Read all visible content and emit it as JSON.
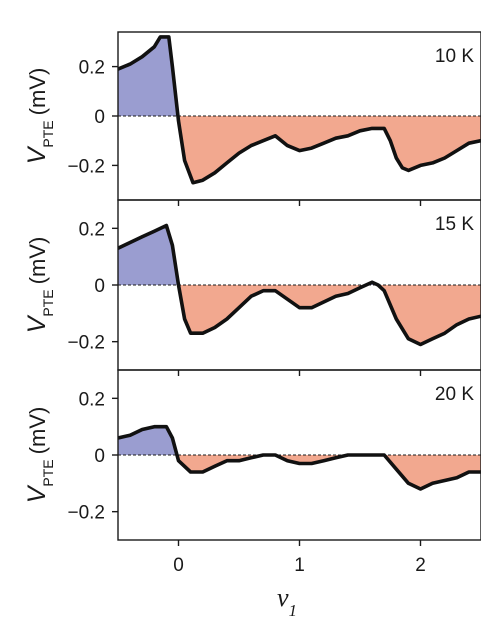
{
  "chart_data": {
    "type": "area",
    "xlabel": "ν",
    "xlabel_sub": "1",
    "xlim": [
      -0.5,
      2.5
    ],
    "x_ticks": [
      0,
      1,
      2
    ],
    "x_tick_labels": [
      "0",
      "1",
      "2"
    ],
    "colors": {
      "positive_fill": "#9a9dd0",
      "negative_fill": "#f2a88f",
      "line": "#111111"
    },
    "panels": [
      {
        "temperature_label": "10 K",
        "ylabel": "V",
        "ylabel_sub": "PTE",
        "ylabel_unit": "(mV)",
        "ylim": [
          -0.34,
          0.34
        ],
        "y_ticks": [
          0.2,
          0,
          -0.2
        ],
        "y_tick_labels": [
          "0.2",
          "0",
          "−0.2"
        ],
        "x": [
          -0.5,
          -0.4,
          -0.3,
          -0.2,
          -0.15,
          -0.08,
          -0.05,
          0.0,
          0.05,
          0.12,
          0.2,
          0.3,
          0.4,
          0.5,
          0.6,
          0.7,
          0.8,
          0.9,
          1.0,
          1.1,
          1.2,
          1.3,
          1.4,
          1.5,
          1.6,
          1.7,
          1.75,
          1.8,
          1.85,
          1.9,
          2.0,
          2.1,
          2.2,
          2.3,
          2.4,
          2.5
        ],
        "y": [
          0.19,
          0.21,
          0.24,
          0.28,
          0.32,
          0.32,
          0.2,
          -0.02,
          -0.18,
          -0.27,
          -0.26,
          -0.23,
          -0.19,
          -0.15,
          -0.12,
          -0.1,
          -0.08,
          -0.12,
          -0.14,
          -0.13,
          -0.11,
          -0.09,
          -0.08,
          -0.06,
          -0.05,
          -0.05,
          -0.1,
          -0.17,
          -0.21,
          -0.22,
          -0.2,
          -0.19,
          -0.17,
          -0.14,
          -0.11,
          -0.1
        ]
      },
      {
        "temperature_label": "15 K",
        "ylabel": "V",
        "ylabel_sub": "PTE",
        "ylabel_unit": "(mV)",
        "ylim": [
          -0.3,
          0.3
        ],
        "y_ticks": [
          0.2,
          0,
          -0.2
        ],
        "y_tick_labels": [
          "0.2",
          "0",
          "−0.2"
        ],
        "x": [
          -0.5,
          -0.4,
          -0.3,
          -0.2,
          -0.1,
          -0.05,
          0.0,
          0.05,
          0.1,
          0.2,
          0.3,
          0.4,
          0.5,
          0.6,
          0.7,
          0.8,
          0.9,
          1.0,
          1.1,
          1.2,
          1.3,
          1.4,
          1.5,
          1.6,
          1.65,
          1.7,
          1.8,
          1.9,
          2.0,
          2.1,
          2.2,
          2.3,
          2.4,
          2.5
        ],
        "y": [
          0.13,
          0.15,
          0.17,
          0.19,
          0.21,
          0.14,
          0.0,
          -0.12,
          -0.17,
          -0.17,
          -0.15,
          -0.12,
          -0.08,
          -0.04,
          -0.02,
          -0.02,
          -0.05,
          -0.08,
          -0.08,
          -0.06,
          -0.04,
          -0.03,
          -0.01,
          0.01,
          0.0,
          -0.02,
          -0.12,
          -0.19,
          -0.21,
          -0.19,
          -0.17,
          -0.14,
          -0.12,
          -0.11
        ]
      },
      {
        "temperature_label": "20 K",
        "ylabel": "V",
        "ylabel_sub": "PTE",
        "ylabel_unit": "(mV)",
        "ylim": [
          -0.3,
          0.3
        ],
        "y_ticks": [
          0.2,
          0,
          -0.2
        ],
        "y_tick_labels": [
          "0.2",
          "0",
          "−0.2"
        ],
        "x": [
          -0.5,
          -0.4,
          -0.3,
          -0.2,
          -0.1,
          -0.05,
          0.0,
          0.1,
          0.2,
          0.3,
          0.4,
          0.5,
          0.6,
          0.7,
          0.8,
          0.9,
          1.0,
          1.1,
          1.2,
          1.3,
          1.4,
          1.5,
          1.6,
          1.7,
          1.8,
          1.9,
          2.0,
          2.1,
          2.2,
          2.3,
          2.4,
          2.5
        ],
        "y": [
          0.06,
          0.07,
          0.09,
          0.1,
          0.1,
          0.06,
          -0.02,
          -0.06,
          -0.06,
          -0.04,
          -0.02,
          -0.02,
          -0.01,
          0.0,
          0.0,
          -0.02,
          -0.03,
          -0.03,
          -0.02,
          -0.01,
          0.0,
          0.0,
          0.0,
          0.0,
          -0.05,
          -0.1,
          -0.12,
          -0.1,
          -0.09,
          -0.08,
          -0.06,
          -0.06
        ]
      }
    ]
  }
}
